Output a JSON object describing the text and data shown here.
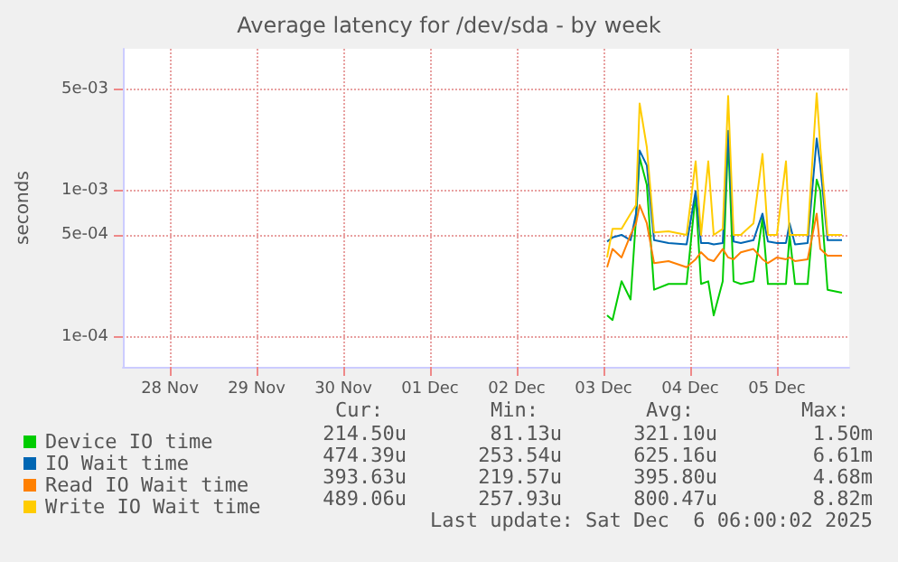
{
  "chart_data": {
    "type": "line",
    "title": "Average latency for /dev/sda - by week",
    "ylabel": "seconds",
    "x": [
      "2025-12-03T13:00",
      "2025-12-03T14:30",
      "2025-12-03T17:00",
      "2025-12-03T19:30",
      "2025-12-03T21:00",
      "2025-12-03T22:00",
      "2025-12-04T00:00",
      "2025-12-04T02:00",
      "2025-12-04T06:00",
      "2025-12-04T11:00",
      "2025-12-04T13:30",
      "2025-12-04T15:00",
      "2025-12-04T17:00",
      "2025-12-04T18:30",
      "2025-12-04T21:00",
      "2025-12-04T22:30",
      "2025-12-05T00:00",
      "2025-12-05T02:00",
      "2025-12-05T05:30",
      "2025-12-05T08:00",
      "2025-12-05T09:30",
      "2025-12-05T12:00",
      "2025-12-05T14:30",
      "2025-12-05T15:30",
      "2025-12-05T17:00",
      "2025-12-05T20:30",
      "2025-12-05T23:00",
      "2025-12-06T00:00",
      "2025-12-06T02:00",
      "2025-12-06T06:00"
    ],
    "series": [
      {
        "name": "Device IO time",
        "color": "#00cc00",
        "values": [
          0.00014,
          0.00013,
          0.00024,
          0.00018,
          0.00065,
          0.0017,
          0.0011,
          0.00021,
          0.00023,
          0.00023,
          0.00095,
          0.00023,
          0.00024,
          0.00014,
          0.00024,
          0.0023,
          0.00024,
          0.00023,
          0.00024,
          0.00065,
          0.00023,
          0.00023,
          0.00023,
          0.0005,
          0.00023,
          0.00023,
          0.0012,
          0.001,
          0.00021,
          0.0002
        ]
      },
      {
        "name": "IO Wait time",
        "color": "#0066b3",
        "values": [
          0.00045,
          0.00048,
          0.0005,
          0.00046,
          0.0007,
          0.0019,
          0.0015,
          0.00046,
          0.00044,
          0.00043,
          0.001,
          0.00044,
          0.00044,
          0.00043,
          0.00044,
          0.0026,
          0.00045,
          0.00044,
          0.00046,
          0.0007,
          0.00045,
          0.00044,
          0.00044,
          0.0006,
          0.00043,
          0.00044,
          0.0023,
          0.0015,
          0.00046,
          0.00046
        ]
      },
      {
        "name": "Read IO Wait time",
        "color": "#ff8000",
        "values": [
          0.0003,
          0.0004,
          0.00035,
          0.0005,
          0.0006,
          0.0008,
          0.0006,
          0.00032,
          0.00033,
          0.0003,
          0.00034,
          0.00038,
          0.00034,
          0.00033,
          0.0004,
          0.00035,
          0.00034,
          0.00038,
          0.0004,
          0.00034,
          0.00032,
          0.00035,
          0.00034,
          0.00035,
          0.00033,
          0.00034,
          0.0007,
          0.0004,
          0.00036,
          0.00036
        ]
      },
      {
        "name": "Write IO Wait time",
        "color": "#ffcc00",
        "values": [
          0.00035,
          0.00055,
          0.00055,
          0.0007,
          0.0008,
          0.004,
          0.002,
          0.00052,
          0.00053,
          0.0005,
          0.0016,
          0.0005,
          0.0016,
          0.0005,
          0.00055,
          0.0045,
          0.0005,
          0.0005,
          0.0006,
          0.0018,
          0.0005,
          0.0005,
          0.0016,
          0.0005,
          0.0005,
          0.0005,
          0.0047,
          0.002,
          0.0005,
          0.0005
        ]
      }
    ],
    "xlim": [
      "2025-11-27T23:00",
      "2025-12-06T08:00"
    ],
    "xticks": [
      {
        "value": "2025-11-28T12:00",
        "label": "28 Nov"
      },
      {
        "value": "2025-11-29T12:00",
        "label": "29 Nov"
      },
      {
        "value": "2025-11-30T12:00",
        "label": "30 Nov"
      },
      {
        "value": "2025-12-01T12:00",
        "label": "01 Dec"
      },
      {
        "value": "2025-12-02T12:00",
        "label": "02 Dec"
      },
      {
        "value": "2025-12-03T12:00",
        "label": "03 Dec"
      },
      {
        "value": "2025-12-04T12:00",
        "label": "04 Dec"
      },
      {
        "value": "2025-12-05T12:00",
        "label": "05 Dec"
      }
    ],
    "ylim": [
      6.2e-05,
      0.0095
    ],
    "yticks": [
      {
        "value": 0.0001,
        "label": "1e-04"
      },
      {
        "value": 0.0005,
        "label": "5e-04"
      },
      {
        "value": 0.001,
        "label": "1e-03"
      },
      {
        "value": 0.005,
        "label": "5e-03"
      }
    ],
    "log": "y",
    "grid": true,
    "legend": "bottom",
    "marker": "none",
    "line_style": "solid",
    "annotations": [
      "Cur:",
      "Min:",
      "Avg:",
      "Max:",
      "214.50u",
      "81.13u",
      "321.10u",
      "1.50m",
      "474.39u",
      "253.54u",
      "625.16u",
      "6.61m",
      "393.63u",
      "219.57u",
      "395.80u",
      "4.68m",
      "489.06u",
      "257.93u",
      "800.47u",
      "8.82m",
      "Last update: Sat Dec  6 06:00:02 2025"
    ]
  }
}
